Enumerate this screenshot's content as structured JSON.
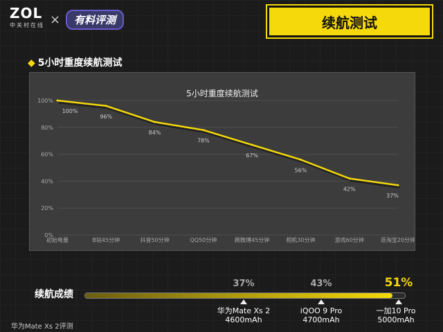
{
  "brand": {
    "logo": "ZOL",
    "logo_sub": "中关村在线",
    "times": "×",
    "collab_logo": "有料评测"
  },
  "header": {
    "title": "续航测试"
  },
  "section": {
    "title": "5小时重度续航测试"
  },
  "chart_data": {
    "type": "line",
    "title": "5小时重度续航测试",
    "categories": [
      "初始电量",
      "B站45分钟",
      "抖音50分钟",
      "QQ50分钟",
      "刷微博45分钟",
      "相机30分钟",
      "游戏60分钟",
      "逛淘宝20分钟"
    ],
    "series": [
      {
        "values": [
          100,
          96,
          84,
          78,
          67,
          56,
          42,
          37
        ]
      }
    ],
    "data_labels": [
      "100%",
      "96%",
      "84%",
      "78%",
      "67%",
      "56%",
      "42%",
      "37%"
    ],
    "y_ticks": [
      "0%",
      "20%",
      "40%",
      "60%",
      "80%",
      "100%"
    ],
    "ylim": [
      0,
      100
    ],
    "grid": true,
    "colors": {
      "line": "#f5d90a",
      "shadow": "#222222"
    }
  },
  "score": {
    "label": "续航成绩",
    "bar_fill_percent": 96,
    "results": [
      {
        "percent": "37%",
        "device": "华为Mate Xs 2",
        "battery": "4600mAh",
        "value": 37
      },
      {
        "percent": "43%",
        "device": "iQOO 9 Pro",
        "battery": "4700mAh",
        "value": 43
      },
      {
        "percent": "51%",
        "device": "一加10 Pro",
        "battery": "5000mAh",
        "value": 51
      }
    ]
  },
  "footer": {
    "text": "华为Mate Xs 2评测"
  }
}
